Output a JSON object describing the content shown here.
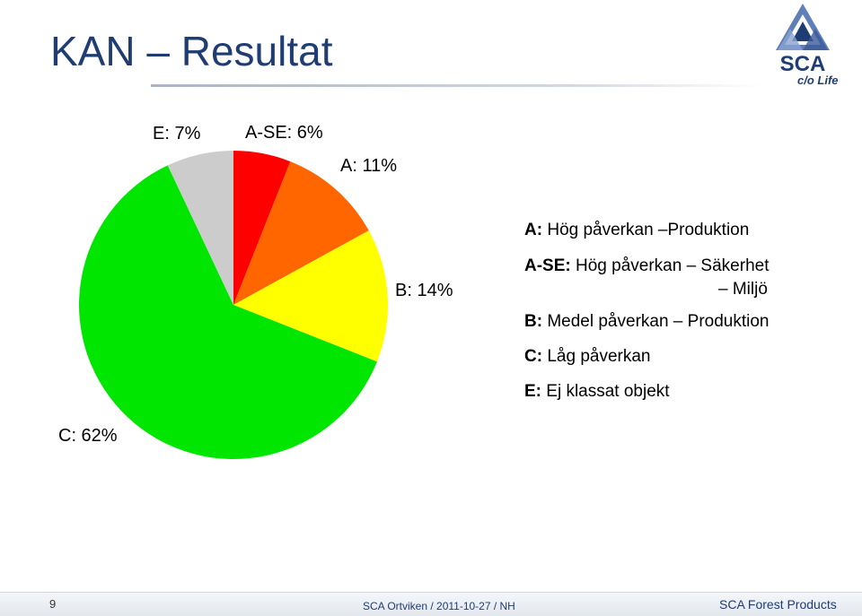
{
  "title": "KAN – Resultat",
  "logo": {
    "text": "SCA",
    "sub": "c/o Life"
  },
  "chart_data": {
    "type": "pie",
    "slices": [
      {
        "key": "A-SE",
        "label": "A-SE: 6%",
        "value": 6,
        "color": "#ff0000"
      },
      {
        "key": "A",
        "label": "A: 11%",
        "value": 11,
        "color": "#ff6600"
      },
      {
        "key": "B",
        "label": "B: 14%",
        "value": 14,
        "color": "#ffff00"
      },
      {
        "key": "C",
        "label": "C: 62%",
        "value": 62,
        "color": "#00e600"
      },
      {
        "key": "E",
        "label": "E: 7%",
        "value": 7,
        "color": "#cccccc"
      }
    ]
  },
  "legend": {
    "a": {
      "key": "A:",
      "text": " Hög påverkan –Produktion"
    },
    "ase": {
      "key": "A-SE:",
      "text": " Hög påverkan – Säkerhet",
      "sub": "– Miljö"
    },
    "b": {
      "key": "B:",
      "text": " Medel påverkan – Produktion"
    },
    "c": {
      "key": "C:",
      "text": " Låg påverkan"
    },
    "e": {
      "key": "E:",
      "text": " Ej klassat objekt"
    }
  },
  "footer": {
    "page": "9",
    "middle": "SCA Ortviken / 2011-10-27 / NH",
    "right": "SCA Forest Products"
  }
}
